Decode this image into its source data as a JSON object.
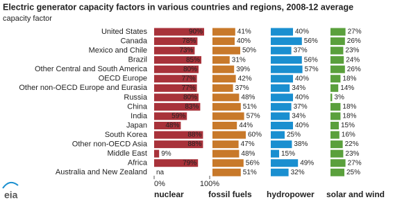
{
  "chart_data": {
    "type": "bar",
    "orientation": "horizontal",
    "title": "Electric generator capacity factors in various countries and regions, 2008-12 average",
    "subtitle": "capacity factor",
    "logo": "eia",
    "categories": [
      "United States",
      "Canada",
      "Mexico and Chile",
      "Brazil",
      "Other Central and South America",
      "OECD Europe",
      "Other non-OECD Europe and Eurasia",
      "Russia",
      "China",
      "India",
      "Japan",
      "South Korea",
      "Other non-OECD Asia",
      "Middle East",
      "Africa",
      "Australia and New Zealand"
    ],
    "xlim": [
      0,
      100
    ],
    "xticks": [
      {
        "value": 0,
        "label": "0%"
      },
      {
        "value": 100,
        "label": "100%"
      }
    ],
    "series": [
      {
        "name": "nuclear",
        "color": "#a8323a",
        "values": [
          90,
          78,
          73,
          85,
          80,
          77,
          77,
          80,
          83,
          59,
          48,
          88,
          88,
          9,
          79,
          null
        ],
        "value_labels": [
          "90%",
          "78%",
          "73%",
          "85%",
          "80%",
          "77%",
          "77%",
          "80%",
          "83%",
          "59%",
          "48%",
          "88%",
          "88%",
          "9%",
          "79%",
          "na"
        ]
      },
      {
        "name": "fossil fuels",
        "color": "#c8792a",
        "values": [
          41,
          40,
          50,
          31,
          39,
          42,
          37,
          48,
          51,
          57,
          44,
          60,
          47,
          48,
          56,
          51
        ],
        "value_labels": [
          "41%",
          "40%",
          "50%",
          "31%",
          "39%",
          "42%",
          "37%",
          "48%",
          "51%",
          "57%",
          "44%",
          "60%",
          "47%",
          "48%",
          "56%",
          "51%"
        ]
      },
      {
        "name": "hydropower",
        "color": "#1a8fd0",
        "values": [
          40,
          56,
          37,
          56,
          57,
          40,
          34,
          40,
          37,
          34,
          40,
          25,
          38,
          15,
          49,
          32
        ],
        "value_labels": [
          "40%",
          "56%",
          "37%",
          "56%",
          "57%",
          "40%",
          "34%",
          "40%",
          "37%",
          "34%",
          "40%",
          "25%",
          "38%",
          "15%",
          "49%",
          "32%"
        ]
      },
      {
        "name": "solar and wind",
        "color": "#5aa03c",
        "values": [
          27,
          26,
          23,
          24,
          26,
          18,
          14,
          3,
          18,
          18,
          15,
          16,
          22,
          23,
          27,
          25
        ],
        "value_labels": [
          "27%",
          "26%",
          "23%",
          "24%",
          "26%",
          "18%",
          "14%",
          "3%",
          "18%",
          "18%",
          "15%",
          "16%",
          "22%",
          "23%",
          "27%",
          "25%"
        ]
      }
    ]
  }
}
